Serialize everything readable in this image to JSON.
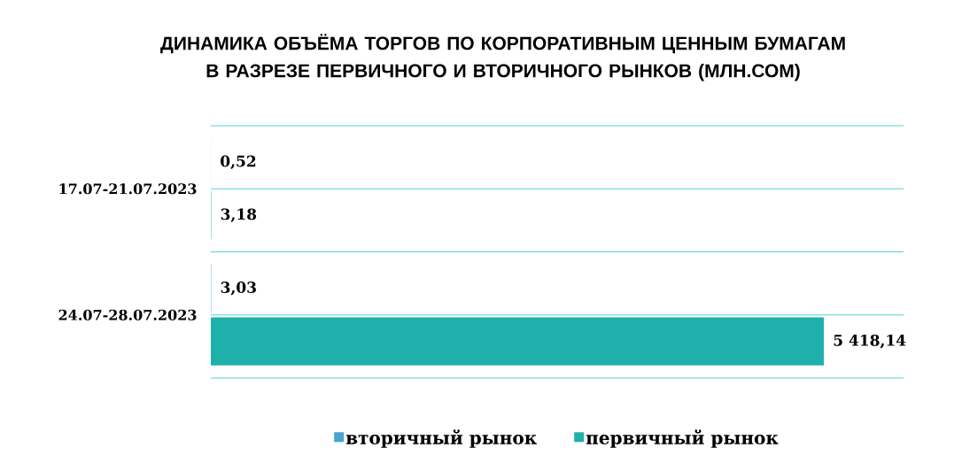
{
  "chart_data": {
    "type": "bar",
    "orientation": "horizontal",
    "title": "ДИНАМИКА ОБЪЁМА ТОРГОВ ПО КОРПОРАТИВНЫМ ЦЕННЫМ БУМАГАМ\nВ РАЗРЕЗЕ ПЕРВИЧНОГО И ВТОРИЧНОГО РЫНКОВ (МЛН.СОМ)",
    "categories": [
      "17.07-21.07.2023",
      "24.07-28.07.2023"
    ],
    "series": [
      {
        "name": "вторичный рынок",
        "color": "#4aa3d0",
        "values": [
          0.52,
          3.03
        ],
        "value_labels": [
          "0,52",
          "3,03"
        ]
      },
      {
        "name": "первичный рынок",
        "color": "#1fb0ab",
        "values": [
          3.18,
          5418.14
        ],
        "value_labels": [
          "3,18",
          "5 418,14"
        ]
      }
    ],
    "grid": "y",
    "legend": "bottom"
  }
}
